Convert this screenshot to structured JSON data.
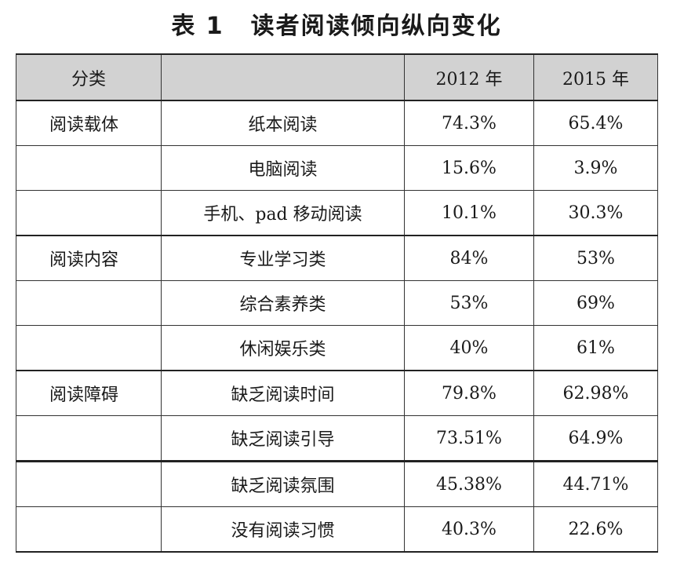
{
  "title": {
    "number": "表 1",
    "text": "读者阅读倾向纵向变化"
  },
  "table": {
    "headers": [
      "分类",
      "",
      "2012 年",
      "2015 年"
    ],
    "rows": [
      {
        "category": "阅读载体",
        "item": "纸本阅读",
        "y2012": "74.3%",
        "y2015": "65.4%"
      },
      {
        "category": "",
        "item": "电脑阅读",
        "y2012": "15.6%",
        "y2015": "3.9%"
      },
      {
        "category": "",
        "item": "手机、pad 移动阅读",
        "y2012": "10.1%",
        "y2015": "30.3%"
      },
      {
        "category": "阅读内容",
        "item": "专业学习类",
        "y2012": "84%",
        "y2015": "53%"
      },
      {
        "category": "",
        "item": "综合素养类",
        "y2012": "53%",
        "y2015": "69%"
      },
      {
        "category": "",
        "item": "休闲娱乐类",
        "y2012": "40%",
        "y2015": "61%"
      },
      {
        "category": "阅读障碍",
        "item": "缺乏阅读时间",
        "y2012": "79.8%",
        "y2015": "62.98%"
      },
      {
        "category": "",
        "item": "缺乏阅读引导",
        "y2012": "73.51%",
        "y2015": "64.9%"
      },
      {
        "category": "",
        "item": "缺乏阅读氛围",
        "y2012": "45.38%",
        "y2015": "44.71%"
      },
      {
        "category": "",
        "item": "没有阅读习惯",
        "y2012": "40.3%",
        "y2015": "22.6%"
      }
    ]
  }
}
